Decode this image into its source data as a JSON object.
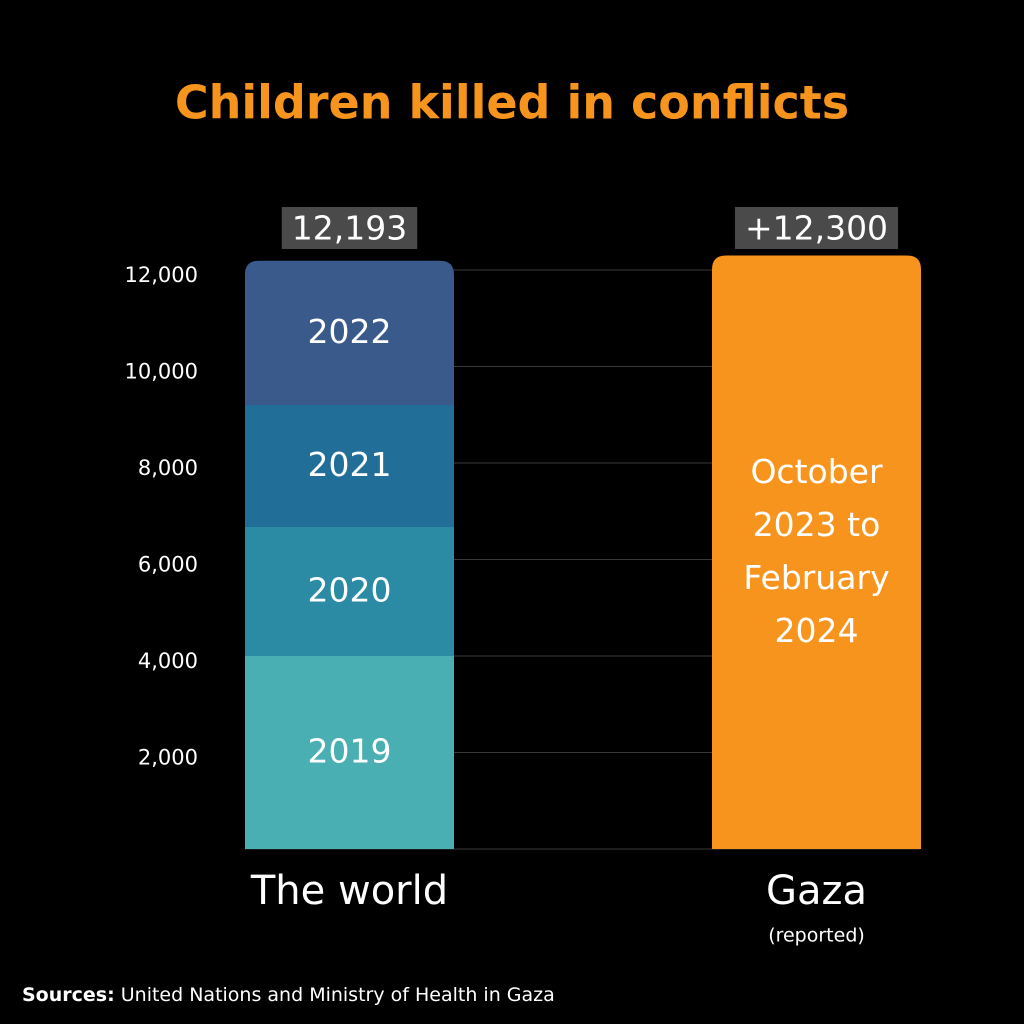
{
  "chart_data": {
    "type": "stacked_bar",
    "title": "Children killed in conflicts",
    "categories": [
      "The world",
      "Gaza"
    ],
    "category_notes": [
      null,
      "(reported)"
    ],
    "series": [
      {
        "name": "2019",
        "color": "#4aafb3",
        "values": [
          4000,
          null
        ]
      },
      {
        "name": "2020",
        "color": "#2b8aa4",
        "values": [
          2674,
          null
        ]
      },
      {
        "name": "2021",
        "color": "#216f99",
        "values": [
          2528,
          null
        ]
      },
      {
        "name": "2022",
        "color": "#3a5a8b",
        "values": [
          2991,
          null
        ]
      },
      {
        "name": "October 2023 to February 2024",
        "color": "#f7941d",
        "values": [
          null,
          12300
        ]
      }
    ],
    "totals": {
      "values": [
        12193,
        12300
      ],
      "value_labels": [
        "12,193",
        "+12,300"
      ]
    },
    "ylim": [
      0,
      12000
    ],
    "yticks": [
      {
        "value": 2000,
        "label": "2,000"
      },
      {
        "value": 4000,
        "label": "4,000"
      },
      {
        "value": 6000,
        "label": "6,000"
      },
      {
        "value": 8000,
        "label": "8,000"
      },
      {
        "value": 10000,
        "label": "10,000"
      },
      {
        "value": 12000,
        "label": "12,000"
      }
    ],
    "grid": true,
    "source": {
      "label": "Sources:",
      "text": "United Nations and  Ministry of Health in Gaza"
    }
  }
}
